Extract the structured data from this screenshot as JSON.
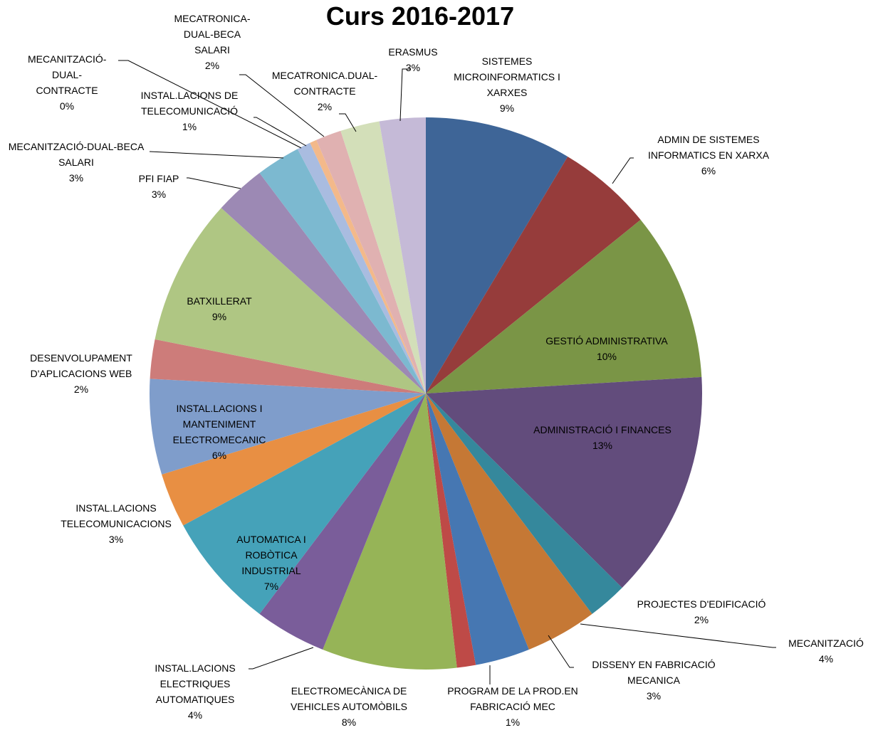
{
  "chart_data": {
    "type": "pie",
    "title": "Curs 2016-2017",
    "categories": [
      "SISTEMES MICROINFORMATICS I XARXES",
      "ADMIN DE SISTEMES INFORMATICS EN XARXA",
      "GESTIÓ ADMINISTRATIVA",
      "ADMINISTRACIÓ I FINANCES",
      "PROJECTES D'EDIFICACIÓ",
      "MECANITZACIÓ",
      "DISSENY EN FABRICACIÓ MECANICA",
      "PROGRAM DE LA PROD.EN FABRICACIÓ MEC",
      "ELECTROMECÀNICA DE VEHICLES AUTOMÒBILS",
      "INSTAL.LACIONS ELECTRIQUES AUTOMATIQUES",
      "AUTOMATICA I ROBÒTICA INDUSTRIAL",
      "INSTAL.LACIONS TELECOMUNICACIONS",
      "INSTAL.LACIONS I MANTENIMENT ELECTROMECANIC",
      "DESENVOLUPAMENT D'APLICACIONS WEB",
      "BATXILLERAT",
      "PFI FIAP",
      "MECANITZACIÓ-DUAL-BECA SALARI",
      "INSTAL.LACIONS DE TELECOMUNICACIÓ",
      "MECANITZACIÓ-DUAL-CONTRACTE",
      "MECATRONICA-DUAL-BECA SALARI",
      "MECATRONICA.DUAL-CONTRACTE",
      "ERASMUS"
    ],
    "values": [
      8.6,
      5.6,
      9.9,
      13.4,
      2.3,
      4.2,
      3.2,
      1.1,
      7.9,
      4.2,
      6.8,
      3.2,
      5.6,
      2.3,
      8.6,
      3.0,
      2.6,
      0.8,
      0.4,
      1.5,
      2.3,
      2.7
    ],
    "value_labels": [
      "9%",
      "6%",
      "10%",
      "13%",
      "2%",
      "4%",
      "3%",
      "1%",
      "8%",
      "4%",
      "7%",
      "3%",
      "6%",
      "2%",
      "9%",
      "3%",
      "3%",
      "1%",
      "0%",
      "2%",
      "2%",
      "3%"
    ],
    "colors": [
      "#3e6597",
      "#963c3b",
      "#7a9546",
      "#624c7c",
      "#35889c",
      "#c57835",
      "#4677b2",
      "#be4a47",
      "#96b457",
      "#7a5d9a",
      "#45a2b9",
      "#e88f43",
      "#7f9dcb",
      "#cd7c7a",
      "#afc683",
      "#9c89b4",
      "#7cb9d0",
      "#a9bce0",
      "#f3b98a",
      "#e0b1b1",
      "#d3dfb9",
      "#c5bad7"
    ]
  }
}
